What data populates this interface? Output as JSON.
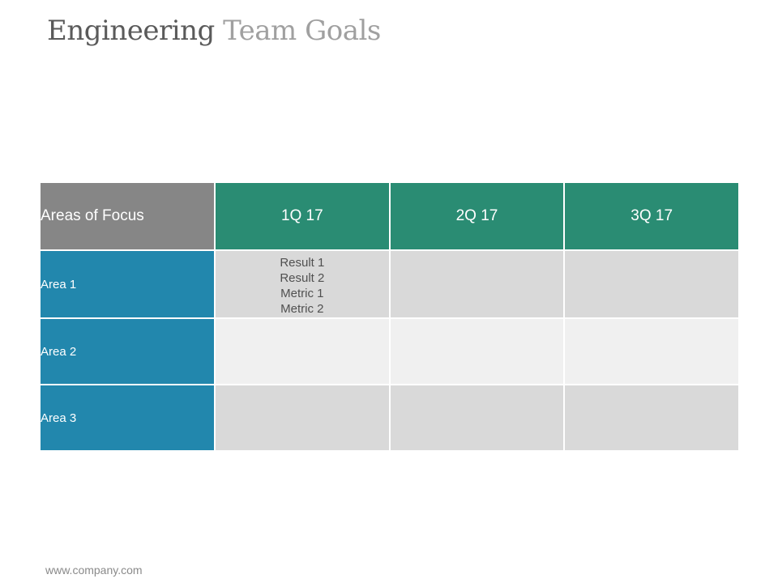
{
  "title": {
    "part1": "Engineering",
    "part2": "Team Goals"
  },
  "table": {
    "corner_header": "Areas of Focus",
    "quarters": [
      "1Q 17",
      "2Q 17",
      "3Q 17"
    ],
    "rows": [
      {
        "area": "Area 1",
        "cells": [
          [
            "Result 1",
            "Result 2",
            "Metric 1",
            "Metric 2"
          ],
          [],
          []
        ]
      },
      {
        "area": "Area 2",
        "cells": [
          [],
          [],
          []
        ]
      },
      {
        "area": "Area 3",
        "cells": [
          [],
          [],
          []
        ]
      }
    ]
  },
  "footer": {
    "url": "www.company.com"
  },
  "colors": {
    "header_gray": "#868686",
    "header_green": "#2a8c73",
    "area_blue": "#2287ad",
    "cell_dark": "#d9d9d9",
    "cell_light": "#f0f0f0"
  }
}
